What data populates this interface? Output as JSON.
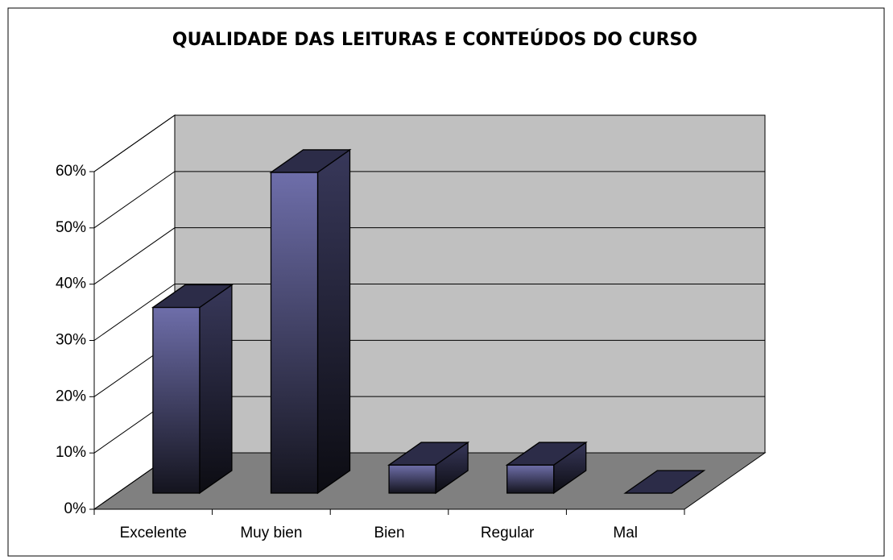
{
  "chart_data": {
    "type": "bar3d",
    "title": "QUALIDADE DAS LEITURAS E CONTEÚDOS DO CURSO",
    "categories": [
      "Excelente",
      "Muy bien",
      "Bien",
      "Regular",
      "Mal"
    ],
    "values": [
      33,
      57,
      5,
      5,
      0
    ],
    "color": "#5a5a96",
    "ylim": [
      0,
      60
    ],
    "yticks": [
      {
        "value": 0,
        "label": "0%"
      },
      {
        "value": 10,
        "label": "10%"
      },
      {
        "value": 20,
        "label": "20%"
      },
      {
        "value": 30,
        "label": "30%"
      },
      {
        "value": 40,
        "label": "40%"
      },
      {
        "value": 50,
        "label": "50%"
      },
      {
        "value": 60,
        "label": "60%"
      }
    ],
    "grid": true
  }
}
